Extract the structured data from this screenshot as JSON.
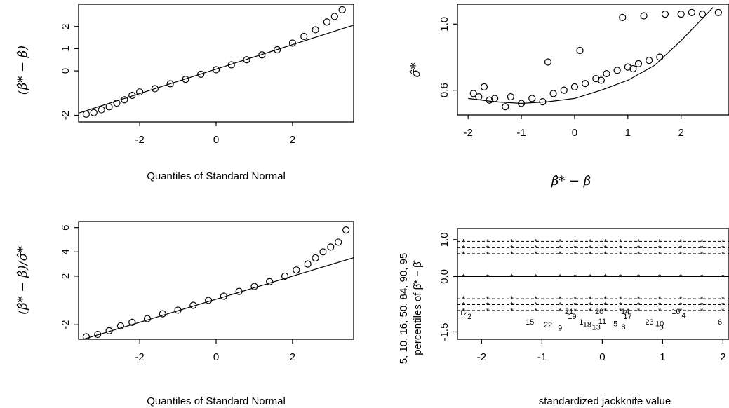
{
  "panels": [
    {
      "id": "qq-raw",
      "chart_data": {
        "type": "scatter",
        "xlabel": "Quantiles of Standard Normal",
        "ylabel": "(β̂* − β̂)",
        "xlim": [
          -3.6,
          3.6
        ],
        "ylim": [
          -2.3,
          3.0
        ],
        "xticks": [
          -2,
          0,
          2
        ],
        "xtick_labels": [
          "-2",
          "0",
          "2"
        ],
        "yticks": [
          -2,
          0,
          1,
          2
        ],
        "ytick_labels": [
          "-2",
          "0",
          "1",
          "2"
        ],
        "reference_line": {
          "slope": 0.55,
          "intercept": 0.08
        },
        "points_x": [
          -3.4,
          -3.2,
          -3.0,
          -2.8,
          -2.6,
          -2.4,
          -2.2,
          -2.0,
          -1.6,
          -1.2,
          -0.8,
          -0.4,
          0.0,
          0.4,
          0.8,
          1.2,
          1.6,
          2.0,
          2.3,
          2.6,
          2.9,
          3.1,
          3.3
        ],
        "points_y": [
          -1.95,
          -1.88,
          -1.75,
          -1.62,
          -1.45,
          -1.3,
          -1.1,
          -0.95,
          -0.8,
          -0.58,
          -0.38,
          -0.15,
          0.05,
          0.27,
          0.5,
          0.72,
          0.95,
          1.25,
          1.55,
          1.85,
          2.2,
          2.45,
          2.75
        ]
      }
    },
    {
      "id": "sigma-vs-beta",
      "chart_data": {
        "type": "scatter",
        "xlabel": "β̂* − β̂",
        "ylabel": "σ̂*",
        "xlim": [
          -2.2,
          2.9
        ],
        "ylim": [
          0.45,
          1.12
        ],
        "xticks": [
          -2,
          -1,
          0,
          1,
          2
        ],
        "xtick_labels": [
          "-2",
          "-1",
          "0",
          "1",
          "2"
        ],
        "yticks": [
          0.6,
          1.0
        ],
        "ytick_labels": [
          "0.6",
          "1.0"
        ],
        "curve_x": [
          -2.0,
          -1.5,
          -1.0,
          -0.5,
          0.0,
          0.5,
          1.0,
          1.5,
          2.0,
          2.3,
          2.6
        ],
        "curve_y": [
          0.55,
          0.53,
          0.52,
          0.53,
          0.55,
          0.6,
          0.66,
          0.75,
          0.9,
          1.0,
          1.1
        ],
        "points_x": [
          -1.9,
          -1.8,
          -1.7,
          -1.6,
          -1.5,
          -1.2,
          -1.0,
          -0.8,
          -0.6,
          -0.4,
          -0.2,
          0.0,
          0.2,
          0.4,
          0.6,
          0.8,
          1.0,
          1.2,
          1.4,
          1.6,
          0.9,
          1.3,
          1.7,
          2.0,
          2.2,
          2.4,
          2.7,
          -0.5,
          0.1,
          0.5,
          1.1,
          -1.3
        ],
        "points_y": [
          0.58,
          0.56,
          0.62,
          0.54,
          0.55,
          0.56,
          0.52,
          0.55,
          0.53,
          0.58,
          0.6,
          0.62,
          0.64,
          0.67,
          0.7,
          0.72,
          0.74,
          0.76,
          0.78,
          0.8,
          1.04,
          1.05,
          1.06,
          1.06,
          1.07,
          1.06,
          1.07,
          0.77,
          0.84,
          0.66,
          0.73,
          0.5
        ]
      }
    },
    {
      "id": "qq-standardized",
      "chart_data": {
        "type": "scatter",
        "xlabel": "Quantiles of Standard Normal",
        "ylabel": "(β̂* − β̂)/σ̂*",
        "xlim": [
          -3.6,
          3.6
        ],
        "ylim": [
          -3.2,
          6.5
        ],
        "xticks": [
          -2,
          0,
          2
        ],
        "xtick_labels": [
          "-2",
          "0",
          "2"
        ],
        "yticks": [
          -2,
          2,
          4,
          6
        ],
        "ytick_labels": [
          "-2",
          "2",
          "4",
          "6"
        ],
        "reference_line": {
          "slope": 0.95,
          "intercept": 0.1
        },
        "points_x": [
          -3.4,
          -3.1,
          -2.8,
          -2.5,
          -2.2,
          -1.8,
          -1.4,
          -1.0,
          -0.6,
          -0.2,
          0.2,
          0.6,
          1.0,
          1.4,
          1.8,
          2.1,
          2.4,
          2.6,
          2.8,
          3.0,
          3.2,
          3.4
        ],
        "points_y": [
          -3.0,
          -2.8,
          -2.5,
          -2.1,
          -1.8,
          -1.5,
          -1.1,
          -0.8,
          -0.4,
          0.0,
          0.35,
          0.75,
          1.15,
          1.55,
          2.0,
          2.5,
          3.0,
          3.5,
          4.0,
          4.4,
          4.8,
          5.8
        ]
      }
    },
    {
      "id": "jackknife-percentiles",
      "chart_data": {
        "type": "line",
        "xlabel": "standardized jackknife value",
        "ylabel": "5, 10, 16, 50, 84, 90, 95\npercentiles of β̂* − β̂",
        "xlim": [
          -2.4,
          2.1
        ],
        "ylim": [
          -1.7,
          1.3
        ],
        "xticks": [
          -2,
          -1,
          0,
          1,
          2
        ],
        "xtick_labels": [
          "-2",
          "-1",
          "0",
          "1",
          "2"
        ],
        "yticks": [
          -1.5,
          0.0,
          1.0
        ],
        "ytick_labels": [
          "-1.5",
          "0.0",
          "1.0"
        ],
        "series": [
          {
            "name": "5",
            "y": -0.92
          },
          {
            "name": "10",
            "y": -0.76
          },
          {
            "name": "16",
            "y": -0.6
          },
          {
            "name": "50",
            "y": 0.0
          },
          {
            "name": "84",
            "y": 0.62
          },
          {
            "name": "90",
            "y": 0.78
          },
          {
            "name": "95",
            "y": 0.95
          }
        ],
        "point_labels": [
          {
            "text": "12",
            "x": -2.3,
            "y": -1.05
          },
          {
            "text": "2",
            "x": -2.2,
            "y": -1.15
          },
          {
            "text": "15",
            "x": -1.2,
            "y": -1.3
          },
          {
            "text": "22",
            "x": -0.9,
            "y": -1.38
          },
          {
            "text": "9",
            "x": -0.7,
            "y": -1.46
          },
          {
            "text": "21",
            "x": -0.55,
            "y": -1.02
          },
          {
            "text": "19",
            "x": -0.5,
            "y": -1.15
          },
          {
            "text": "1",
            "x": -0.35,
            "y": -1.3
          },
          {
            "text": "18",
            "x": -0.25,
            "y": -1.37
          },
          {
            "text": "13",
            "x": -0.1,
            "y": -1.44
          },
          {
            "text": "20",
            "x": -0.05,
            "y": -1.02
          },
          {
            "text": "11",
            "x": 0.0,
            "y": -1.28
          },
          {
            "text": "5",
            "x": 0.22,
            "y": -1.35
          },
          {
            "text": "8",
            "x": 0.35,
            "y": -1.43
          },
          {
            "text": "14",
            "x": 0.38,
            "y": -1.02
          },
          {
            "text": "17",
            "x": 0.42,
            "y": -1.15
          },
          {
            "text": "23",
            "x": 0.78,
            "y": -1.3
          },
          {
            "text": "10",
            "x": 0.95,
            "y": -1.35
          },
          {
            "text": "3",
            "x": 0.98,
            "y": -1.44
          },
          {
            "text": "16",
            "x": 1.22,
            "y": -1.02
          },
          {
            "text": "4",
            "x": 1.35,
            "y": -1.12
          },
          {
            "text": "6",
            "x": 1.95,
            "y": -1.3
          }
        ]
      }
    }
  ]
}
